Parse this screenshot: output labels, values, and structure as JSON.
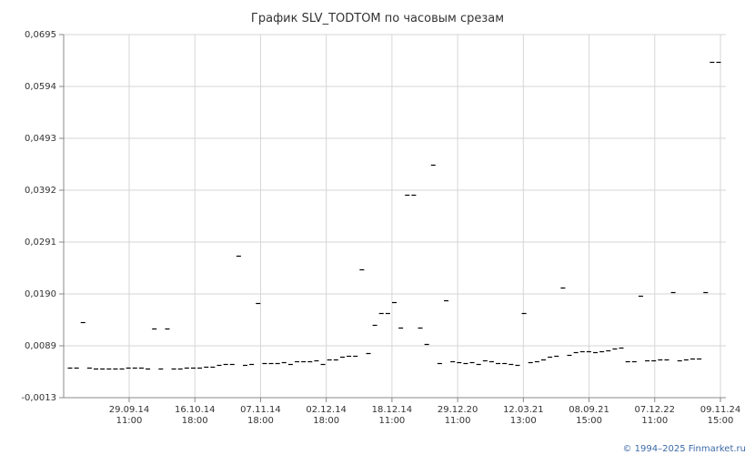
{
  "chart_data": {
    "type": "scatter",
    "title": "График SLV_TODTOM по часовым срезам",
    "xlabel": "",
    "ylabel": "",
    "ylim": [
      -0.0013,
      0.0695
    ],
    "y_ticks": [
      "0,0695",
      "0,0594",
      "0,0493",
      "0,0392",
      "0,0291",
      "0,0190",
      "0,0089",
      "-0,0013"
    ],
    "x_ticks": [
      {
        "date": "29.09.14",
        "time": "11:00"
      },
      {
        "date": "16.10.14",
        "time": "18:00"
      },
      {
        "date": "07.11.14",
        "time": "18:00"
      },
      {
        "date": "02.12.14",
        "time": "18:00"
      },
      {
        "date": "18.12.14",
        "time": "11:00"
      },
      {
        "date": "29.12.20",
        "time": "11:00"
      },
      {
        "date": "12.03.21",
        "time": "13:00"
      },
      {
        "date": "08.09.21",
        "time": "15:00"
      },
      {
        "date": "07.12.22",
        "time": "11:00"
      },
      {
        "date": "09.11.24",
        "time": "15:00"
      }
    ],
    "grid": true,
    "legend": "none",
    "marker": "short horizontal dash",
    "color": "#000000",
    "values": [
      0.0045,
      0.0046,
      0.0135,
      0.0046,
      0.0044,
      0.0044,
      0.0044,
      0.0044,
      0.0044,
      0.0045,
      0.0045,
      0.0045,
      0.0044,
      0.0122,
      0.0043,
      0.0122,
      0.0044,
      0.0044,
      0.0046,
      0.0046,
      0.0046,
      0.0047,
      0.0047,
      0.005,
      0.0052,
      0.0052,
      0.0263,
      0.0051,
      0.0052,
      0.0171,
      0.0054,
      0.0054,
      0.0055,
      0.0056,
      0.0053,
      0.0058,
      0.0058,
      0.0058,
      0.006,
      0.0053,
      0.0061,
      0.0061,
      0.0066,
      0.0068,
      0.0068,
      0.0237,
      0.0074,
      0.0129,
      0.0152,
      0.0152,
      0.0174,
      0.0123,
      0.0383,
      0.0383,
      0.0123,
      0.0091,
      0.0442,
      0.0055,
      0.0177,
      0.0058,
      0.0057,
      0.0055,
      0.0057,
      0.0052,
      0.0059,
      0.0058,
      0.0055,
      0.0055,
      0.0053,
      0.0051,
      0.0152,
      0.0057,
      0.0058,
      0.0062,
      0.0066,
      0.0068,
      0.0201,
      0.007,
      0.0076,
      0.0078,
      0.0078,
      0.0076,
      0.0078,
      0.008,
      0.0082,
      0.0084,
      0.0058,
      0.0058,
      0.0185,
      0.006,
      0.006,
      0.0061,
      0.0062,
      0.0192,
      0.006,
      0.0062,
      0.0063,
      0.0063,
      0.0193,
      0.0641,
      0.0641
    ]
  },
  "footer": {
    "copyright": "© 1994–2025 Finmarket.ru"
  }
}
